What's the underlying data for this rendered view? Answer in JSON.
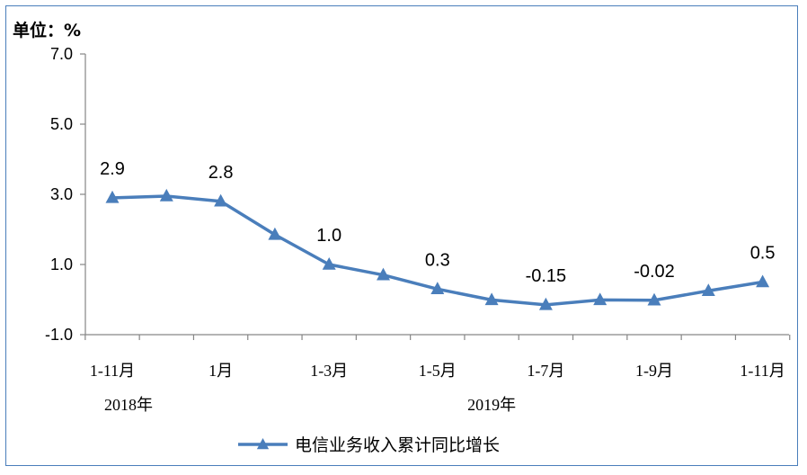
{
  "chart_data": {
    "type": "line",
    "unit_label": "单位：%",
    "x": [
      "1-11月",
      "",
      "1月",
      "",
      "1-3月",
      "",
      "1-5月",
      "",
      "1-7月",
      "",
      "1-9月",
      "",
      "1-11月"
    ],
    "year_labels": [
      "2018年",
      "2019年"
    ],
    "ylim": [
      -1.0,
      7.0
    ],
    "yticks": [
      "7.0",
      "5.0",
      "3.0",
      "1.0",
      "-1.0"
    ],
    "series": [
      {
        "name": "电信业务收入累计同比增长",
        "color": "#4a7ebb",
        "marker": "triangle",
        "values": [
          2.9,
          2.95,
          2.8,
          1.85,
          1.0,
          0.7,
          0.3,
          -0.01,
          -0.15,
          -0.01,
          -0.02,
          0.25,
          0.5
        ],
        "data_labels": [
          "2.9",
          "",
          "2.8",
          "",
          "1.0",
          "",
          "0.3",
          "",
          "-0.15",
          "",
          "-0.02",
          "",
          "0.5"
        ]
      }
    ],
    "grid": false,
    "legend": "bottom"
  }
}
